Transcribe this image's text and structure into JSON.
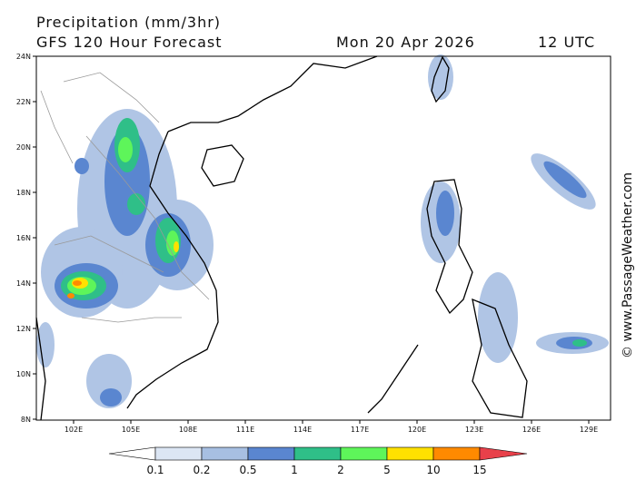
{
  "header": {
    "title": "Precipitation (mm/3hr)",
    "subtitle": "GFS 120 Hour Forecast",
    "date": "Mon 20 Apr 2026",
    "time": "12 UTC"
  },
  "map": {
    "lon_labels": [
      "102E",
      "105E",
      "108E",
      "111E",
      "114E",
      "117E",
      "120E",
      "123E",
      "126E",
      "129E"
    ],
    "lat_labels": [
      "24N",
      "22N",
      "20N",
      "18N",
      "16N",
      "14N",
      "12N",
      "10N",
      "8N"
    ]
  },
  "legend": {
    "labels": [
      "0.1",
      "0.2",
      "0.5",
      "1",
      "2",
      "5",
      "10",
      "15"
    ],
    "colors": [
      "#ffffff",
      "#dce6f4",
      "#a7bfe2",
      "#5a86d0",
      "#2fbf88",
      "#5ef55a",
      "#ffe100",
      "#ff8a00",
      "#e8404a"
    ]
  },
  "credit": "© www.PassageWeather.com"
}
